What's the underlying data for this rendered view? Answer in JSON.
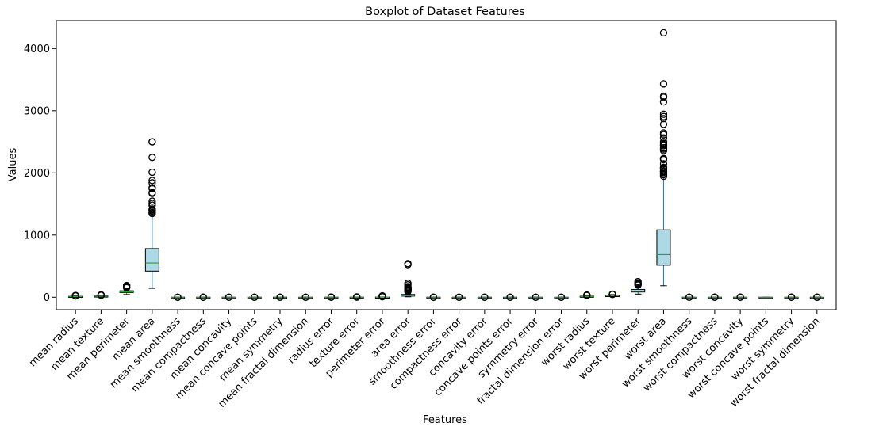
{
  "chart_data": {
    "type": "boxplot",
    "title": "Boxplot of Dataset Features",
    "xlabel": "Features",
    "ylabel": "Values",
    "ylim": [
      -200,
      4450
    ],
    "yticks": [
      0,
      1000,
      2000,
      3000,
      4000
    ],
    "grid": false,
    "colors": {
      "box_fill": "#add8e6",
      "box_edge": "#000000",
      "whisker": "#1f77b4",
      "median": "#2ca02c",
      "flier": "#000000"
    },
    "features": [
      {
        "name": "mean radius",
        "q1": 11.7,
        "median": 13.4,
        "q3": 15.8,
        "whislo": 7,
        "whishi": 21.9,
        "fliers": [
          22.3,
          23.3,
          24.6,
          25.2,
          27.2,
          28.1
        ]
      },
      {
        "name": "mean texture",
        "q1": 16.2,
        "median": 18.8,
        "q3": 21.8,
        "whislo": 9.7,
        "whishi": 29.8,
        "fliers": [
          30.7,
          32.5,
          33.6,
          39.3
        ]
      },
      {
        "name": "mean perimeter",
        "q1": 75.2,
        "median": 86.2,
        "q3": 104.1,
        "whislo": 43.8,
        "whishi": 147.3,
        "fliers": [
          152.8,
          158.9,
          166.2,
          171.5,
          182.1,
          188.5
        ]
      },
      {
        "name": "mean area",
        "q1": 420,
        "median": 551,
        "q3": 782,
        "whislo": 143,
        "whishi": 1326,
        "fliers": [
          1347,
          1364,
          1386,
          1404,
          1419,
          1482,
          1509,
          1546,
          1670,
          1682,
          1747,
          1761,
          1841,
          1878,
          2010,
          2250,
          2499,
          2501
        ]
      },
      {
        "name": "mean smoothness",
        "q1": 0.086,
        "median": 0.096,
        "q3": 0.105,
        "whislo": 0.053,
        "whishi": 0.133,
        "fliers": [
          0.145,
          0.163
        ]
      },
      {
        "name": "mean compactness",
        "q1": 0.065,
        "median": 0.093,
        "q3": 0.13,
        "whislo": 0.019,
        "whishi": 0.228,
        "fliers": [
          0.284,
          0.345
        ]
      },
      {
        "name": "mean concavity",
        "q1": 0.03,
        "median": 0.062,
        "q3": 0.131,
        "whislo": 0,
        "whishi": 0.282,
        "fliers": [
          0.3,
          0.427
        ]
      },
      {
        "name": "mean concave points",
        "q1": 0.02,
        "median": 0.034,
        "q3": 0.074,
        "whislo": 0,
        "whishi": 0.155,
        "fliers": [
          0.16,
          0.201
        ]
      },
      {
        "name": "mean symmetry",
        "q1": 0.162,
        "median": 0.179,
        "q3": 0.196,
        "whislo": 0.117,
        "whishi": 0.246,
        "fliers": [
          0.274,
          0.304
        ]
      },
      {
        "name": "mean fractal dimension",
        "q1": 0.058,
        "median": 0.062,
        "q3": 0.066,
        "whislo": 0.05,
        "whishi": 0.078,
        "fliers": [
          0.087,
          0.097
        ]
      },
      {
        "name": "radius error",
        "q1": 0.232,
        "median": 0.324,
        "q3": 0.479,
        "whislo": 0.112,
        "whishi": 0.84,
        "fliers": [
          1.0,
          1.51,
          2.87
        ]
      },
      {
        "name": "texture error",
        "q1": 0.834,
        "median": 1.108,
        "q3": 1.474,
        "whislo": 0.36,
        "whishi": 2.43,
        "fliers": [
          2.6,
          3.12,
          4.89
        ]
      },
      {
        "name": "perimeter error",
        "q1": 1.61,
        "median": 2.29,
        "q3": 3.36,
        "whislo": 0.76,
        "whishi": 5.98,
        "fliers": [
          7.2,
          10.1,
          13.3,
          18.6,
          21.98
        ]
      },
      {
        "name": "area error",
        "q1": 17.9,
        "median": 24.5,
        "q3": 45.2,
        "whislo": 6.8,
        "whishi": 86.2,
        "fliers": [
          93,
          98,
          104,
          112,
          120,
          128,
          134,
          139,
          146,
          153,
          158,
          170,
          199,
          224,
          525,
          542
        ]
      },
      {
        "name": "smoothness error",
        "q1": 0.005,
        "median": 0.0064,
        "q3": 0.0081,
        "whislo": 0.0017,
        "whishi": 0.0127,
        "fliers": [
          0.0172,
          0.0311
        ]
      },
      {
        "name": "compactness error",
        "q1": 0.013,
        "median": 0.02,
        "q3": 0.032,
        "whislo": 0.002,
        "whishi": 0.061,
        "fliers": [
          0.08,
          0.135
        ]
      },
      {
        "name": "concavity error",
        "q1": 0.015,
        "median": 0.026,
        "q3": 0.042,
        "whislo": 0,
        "whishi": 0.082,
        "fliers": [
          0.15,
          0.396
        ]
      },
      {
        "name": "concave points error",
        "q1": 0.0076,
        "median": 0.0109,
        "q3": 0.0147,
        "whislo": 0,
        "whishi": 0.0253,
        "fliers": [
          0.0328,
          0.0528
        ]
      },
      {
        "name": "symmetry error",
        "q1": 0.015,
        "median": 0.0187,
        "q3": 0.0235,
        "whislo": 0.0079,
        "whishi": 0.036,
        "fliers": [
          0.0469,
          0.079
        ]
      },
      {
        "name": "fractal dimension error",
        "q1": 0.0022,
        "median": 0.0032,
        "q3": 0.0046,
        "whislo": 0.0009,
        "whishi": 0.0081,
        "fliers": [
          0.0122,
          0.0298
        ]
      },
      {
        "name": "worst radius",
        "q1": 13.0,
        "median": 15.0,
        "q3": 18.8,
        "whislo": 7.9,
        "whishi": 27.5,
        "fliers": [
          28.4,
          30.0,
          33.1,
          36.04
        ]
      },
      {
        "name": "worst texture",
        "q1": 21.1,
        "median": 25.4,
        "q3": 29.7,
        "whislo": 12.0,
        "whishi": 42.7,
        "fliers": [
          44.9,
          47.2,
          49.5
        ]
      },
      {
        "name": "worst perimeter",
        "q1": 84.1,
        "median": 97.7,
        "q3": 125.4,
        "whislo": 50.4,
        "whishi": 187.3,
        "fliers": [
          195.9,
          206.8,
          214.0,
          220.8,
          229.3,
          251.2
        ]
      },
      {
        "name": "worst area",
        "q1": 515,
        "median": 686,
        "q3": 1084,
        "whislo": 185,
        "whishi": 1938,
        "fliers": [
          1946,
          1972,
          1986,
          2009,
          2022,
          2027,
          2053,
          2073,
          2081,
          2089,
          2145,
          2215,
          2227,
          2232,
          2360,
          2384,
          2403,
          2437,
          2453,
          2477,
          2499,
          2562,
          2615,
          2642,
          2782,
          2873,
          2906,
          2944,
          3143,
          3216,
          3234,
          3432,
          4254
        ]
      },
      {
        "name": "worst smoothness",
        "q1": 0.117,
        "median": 0.131,
        "q3": 0.146,
        "whislo": 0.071,
        "whishi": 0.19,
        "fliers": [
          0.2,
          0.223
        ]
      },
      {
        "name": "worst compactness",
        "q1": 0.147,
        "median": 0.212,
        "q3": 0.339,
        "whislo": 0.027,
        "whishi": 0.625,
        "fliers": [
          0.664,
          0.868,
          1.058
        ]
      },
      {
        "name": "worst concavity",
        "q1": 0.114,
        "median": 0.227,
        "q3": 0.383,
        "whislo": 0,
        "whishi": 0.787,
        "fliers": [
          0.808,
          0.938,
          1.252
        ]
      },
      {
        "name": "worst concave points",
        "q1": 0.065,
        "median": 0.1,
        "q3": 0.161,
        "whislo": 0,
        "whishi": 0.291,
        "fliers": []
      },
      {
        "name": "worst symmetry",
        "q1": 0.25,
        "median": 0.282,
        "q3": 0.318,
        "whislo": 0.156,
        "whishi": 0.418,
        "fliers": [
          0.437,
          0.544,
          0.664
        ]
      },
      {
        "name": "worst fractal dimension",
        "q1": 0.071,
        "median": 0.08,
        "q3": 0.092,
        "whislo": 0.055,
        "whishi": 0.123,
        "fliers": [
          0.135,
          0.173,
          0.208
        ]
      }
    ]
  }
}
